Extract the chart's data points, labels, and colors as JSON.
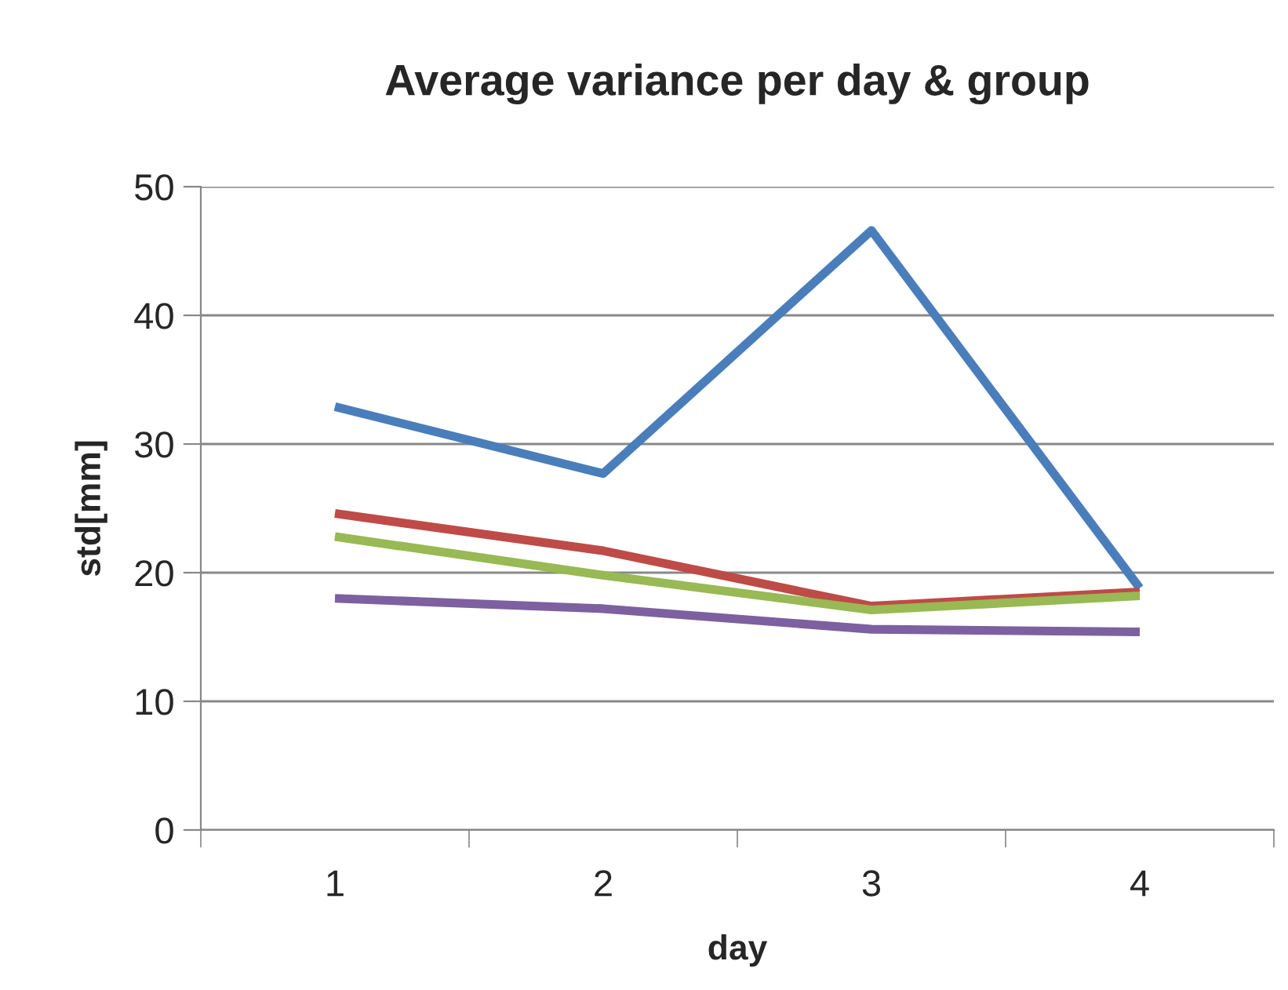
{
  "chart_data": {
    "type": "line",
    "title": "Average variance per day & group",
    "xlabel": "day",
    "ylabel": "std[mm]",
    "categories": [
      "1",
      "2",
      "3",
      "4"
    ],
    "series": [
      {
        "color": "#4a7ebb",
        "values": [
          32.9,
          27.7,
          46.6,
          18.8
        ]
      },
      {
        "color": "#be4b48",
        "values": [
          24.6,
          21.7,
          17.4,
          18.5
        ]
      },
      {
        "color": "#98b954",
        "values": [
          22.8,
          19.8,
          17.1,
          18.2
        ]
      },
      {
        "color": "#7d60a0",
        "values": [
          18.0,
          17.2,
          15.6,
          15.4
        ]
      }
    ],
    "ylim": [
      0,
      50
    ],
    "yticks": [
      0,
      10,
      20,
      30,
      40,
      50
    ],
    "grid": "y",
    "legend": false,
    "marker": "none",
    "line_style": "solid"
  }
}
